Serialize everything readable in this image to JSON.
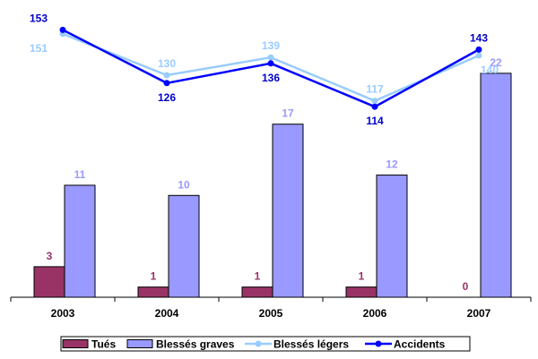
{
  "chart_data": {
    "type": "bar",
    "categories": [
      "2003",
      "2004",
      "2005",
      "2006",
      "2007"
    ],
    "bar_series": [
      {
        "name": "Tués",
        "values": [
          3,
          1,
          1,
          1,
          0
        ],
        "color": "#993366",
        "label_color": "#993366"
      },
      {
        "name": "Blessés graves",
        "values": [
          11,
          10,
          17,
          12,
          22
        ],
        "color": "#9999FF",
        "label_color": "#9999FF"
      }
    ],
    "line_series": [
      {
        "name": "Blessés légers",
        "values": [
          151,
          130,
          139,
          117,
          140
        ],
        "color": "#99CCFF",
        "label_color": "#99CCFF"
      },
      {
        "name": "Accidents",
        "values": [
          153,
          126,
          136,
          114,
          143
        ],
        "color": "#0000FF",
        "label_color": "#0000CC"
      }
    ],
    "bar_ylim": [
      0,
      27
    ],
    "line_ylim": [
      100,
      160
    ],
    "grid": false,
    "legend_position": "bottom",
    "axis_color": "#000000"
  }
}
